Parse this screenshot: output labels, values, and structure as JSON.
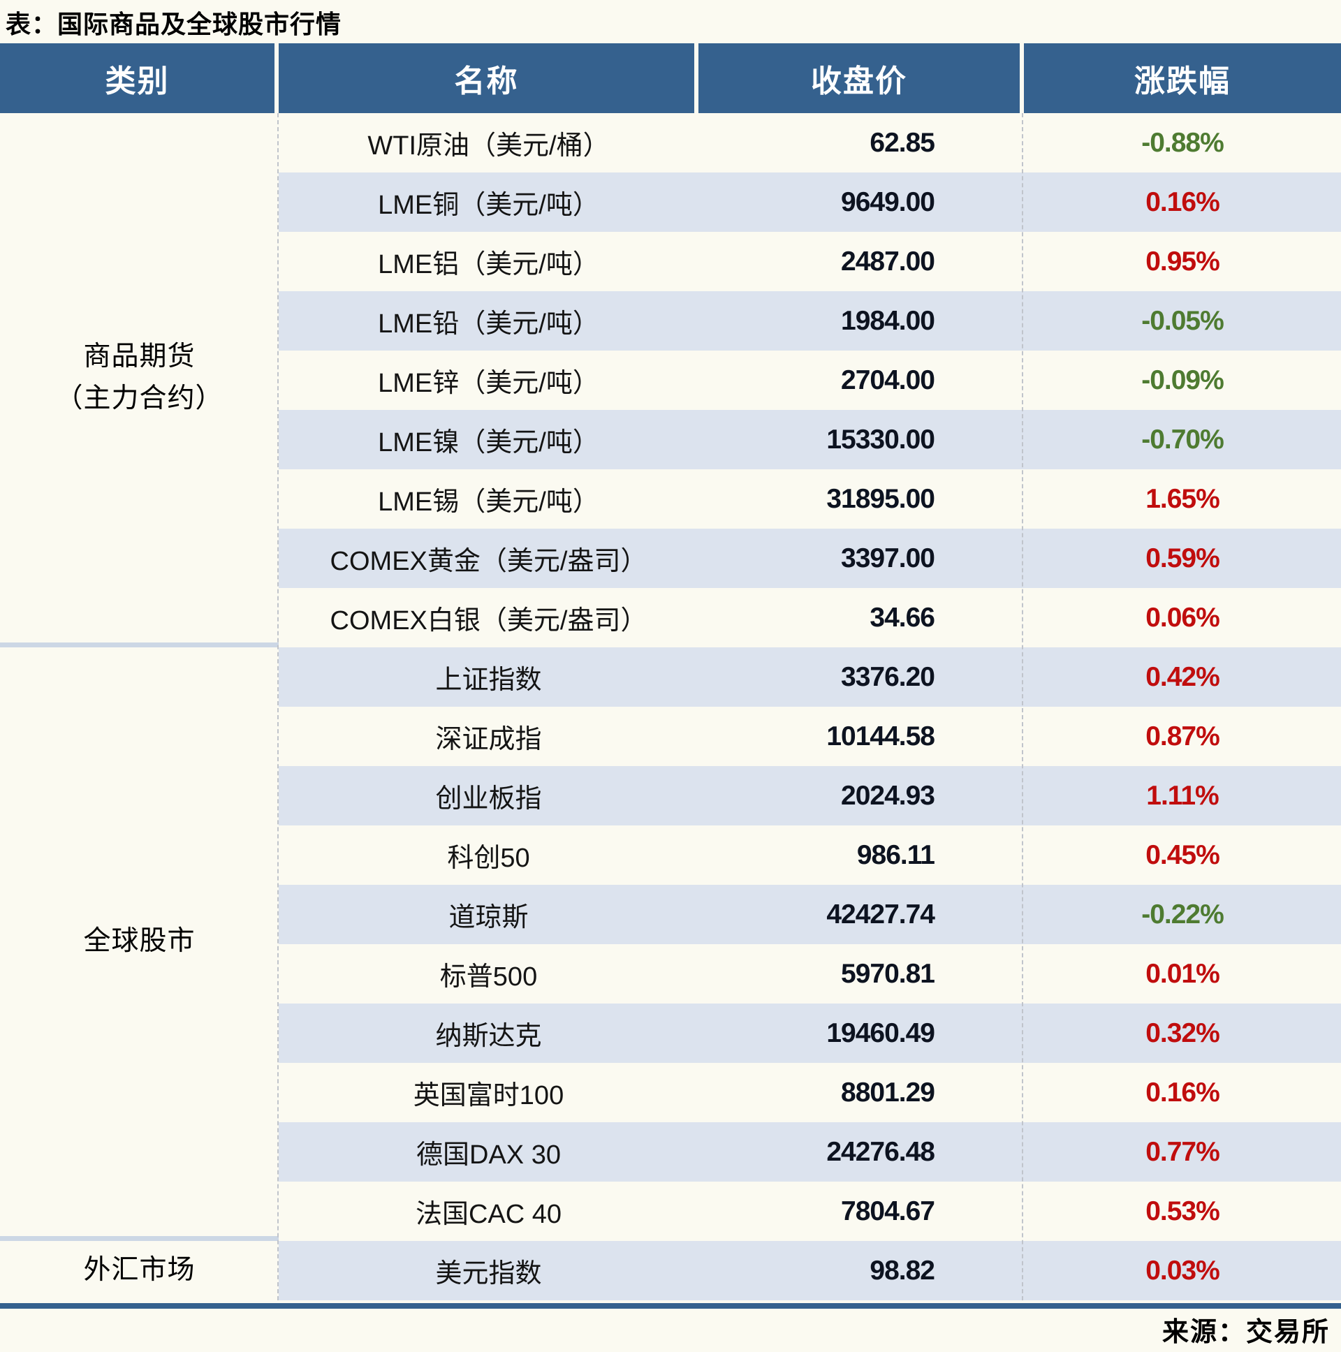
{
  "title": "表：国际商品及全球股市行情",
  "source": "来源：交易所",
  "colors": {
    "header_bg": "#35618e",
    "stripe_bg": "#dce3ee",
    "page_bg": "#fbfaf1",
    "up_red": "#c00d0d",
    "down_green": "#4e7b31",
    "group_separator": "#ccd7e5",
    "bottom_rule": "#35618e"
  },
  "table": {
    "columns": [
      "类别",
      "名称",
      "收盘价",
      "涨跌幅"
    ],
    "groups": [
      {
        "category_lines": [
          "商品期货",
          "（主力合约）"
        ],
        "rows": [
          {
            "name": "WTI原油（美元/桶）",
            "close": "62.85",
            "change": "-0.88%",
            "direction": "down"
          },
          {
            "name": "LME铜（美元/吨）",
            "close": "9649.00",
            "change": "0.16%",
            "direction": "up"
          },
          {
            "name": "LME铝（美元/吨）",
            "close": "2487.00",
            "change": "0.95%",
            "direction": "up"
          },
          {
            "name": "LME铅（美元/吨）",
            "close": "1984.00",
            "change": "-0.05%",
            "direction": "down"
          },
          {
            "name": "LME锌（美元/吨）",
            "close": "2704.00",
            "change": "-0.09%",
            "direction": "down"
          },
          {
            "name": "LME镍（美元/吨）",
            "close": "15330.00",
            "change": "-0.70%",
            "direction": "down"
          },
          {
            "name": "LME锡（美元/吨）",
            "close": "31895.00",
            "change": "1.65%",
            "direction": "up"
          },
          {
            "name": "COMEX黄金（美元/盎司）",
            "close": "3397.00",
            "change": "0.59%",
            "direction": "up"
          },
          {
            "name": "COMEX白银（美元/盎司）",
            "close": "34.66",
            "change": "0.06%",
            "direction": "up"
          }
        ]
      },
      {
        "category_lines": [
          "全球股市"
        ],
        "rows": [
          {
            "name": "上证指数",
            "close": "3376.20",
            "change": "0.42%",
            "direction": "up"
          },
          {
            "name": "深证成指",
            "close": "10144.58",
            "change": "0.87%",
            "direction": "up"
          },
          {
            "name": "创业板指",
            "close": "2024.93",
            "change": "1.11%",
            "direction": "up"
          },
          {
            "name": "科创50",
            "close": "986.11",
            "change": "0.45%",
            "direction": "up"
          },
          {
            "name": "道琼斯",
            "close": "42427.74",
            "change": "-0.22%",
            "direction": "down"
          },
          {
            "name": "标普500",
            "close": "5970.81",
            "change": "0.01%",
            "direction": "up"
          },
          {
            "name": "纳斯达克",
            "close": "19460.49",
            "change": "0.32%",
            "direction": "up"
          },
          {
            "name": "英国富时100",
            "close": "8801.29",
            "change": "0.16%",
            "direction": "up"
          },
          {
            "name": "德国DAX 30",
            "close": "24276.48",
            "change": "0.77%",
            "direction": "up"
          },
          {
            "name": "法国CAC 40",
            "close": "7804.67",
            "change": "0.53%",
            "direction": "up"
          }
        ]
      },
      {
        "category_lines": [
          "外汇市场"
        ],
        "rows": [
          {
            "name": "美元指数",
            "close": "98.82",
            "change": "0.03%",
            "direction": "up"
          }
        ]
      }
    ]
  }
}
